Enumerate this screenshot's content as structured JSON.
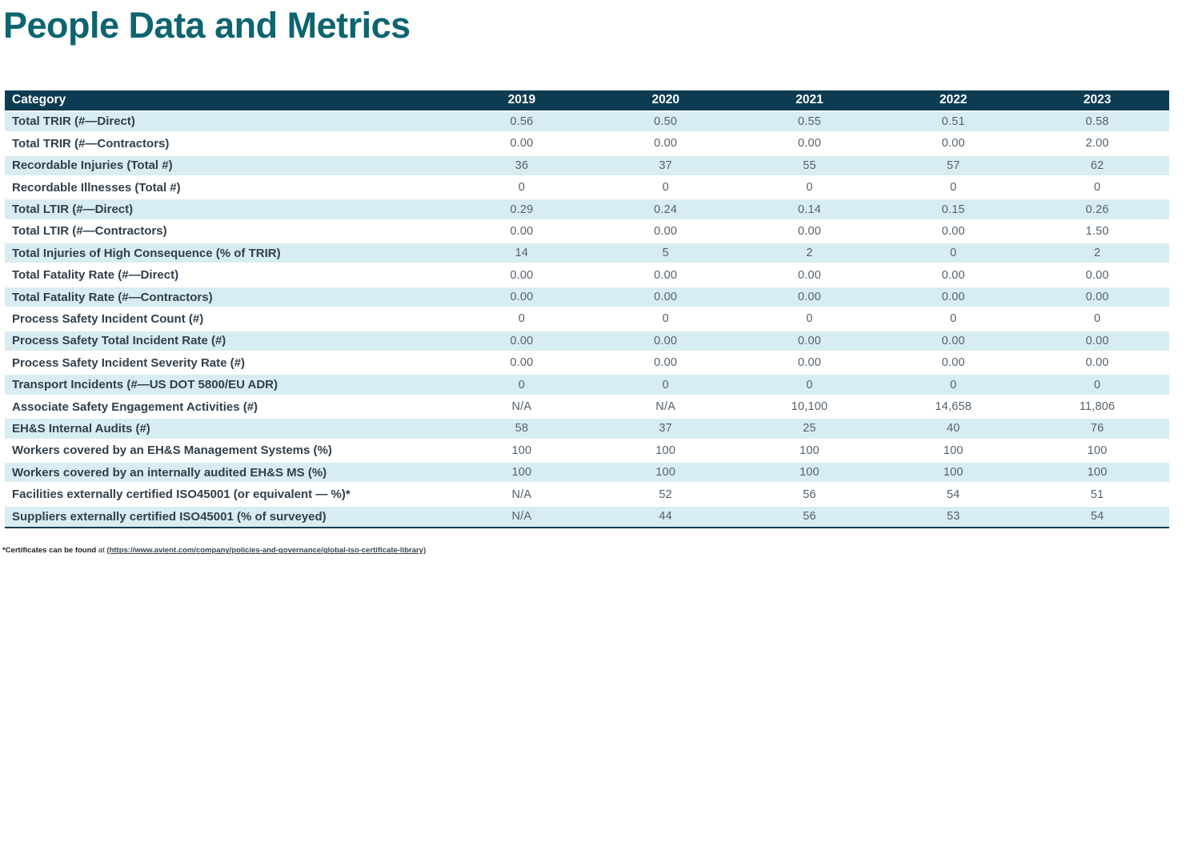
{
  "page_title": "People Data and Metrics",
  "table": {
    "header": [
      "Category",
      "2019",
      "2020",
      "2021",
      "2022",
      "2023"
    ],
    "rows": [
      {
        "category": "Total TRIR (#—Direct)",
        "values": [
          "0.56",
          "0.50",
          "0.55",
          "0.51",
          "0.58"
        ]
      },
      {
        "category": "Total TRIR (#—Contractors)",
        "values": [
          "0.00",
          "0.00",
          "0.00",
          "0.00",
          "2.00"
        ]
      },
      {
        "category": "Recordable Injuries (Total #)",
        "values": [
          "36",
          "37",
          "55",
          "57",
          "62"
        ]
      },
      {
        "category": "Recordable Illnesses (Total #)",
        "values": [
          "0",
          "0",
          "0",
          "0",
          "0"
        ]
      },
      {
        "category": "Total LTIR (#—Direct)",
        "values": [
          "0.29",
          "0.24",
          "0.14",
          "0.15",
          "0.26"
        ]
      },
      {
        "category": "Total LTIR (#—Contractors)",
        "values": [
          "0.00",
          "0.00",
          "0.00",
          "0.00",
          "1.50"
        ]
      },
      {
        "category": "Total Injuries of High Consequence (% of TRIR)",
        "values": [
          "14",
          "5",
          "2",
          "0",
          "2"
        ]
      },
      {
        "category": "Total Fatality Rate (#—Direct)",
        "values": [
          "0.00",
          "0.00",
          "0.00",
          "0.00",
          "0.00"
        ]
      },
      {
        "category": "Total Fatality Rate (#—Contractors)",
        "values": [
          "0.00",
          "0.00",
          "0.00",
          "0.00",
          "0.00"
        ]
      },
      {
        "category": "Process Safety Incident Count (#)",
        "values": [
          "0",
          "0",
          "0",
          "0",
          "0"
        ]
      },
      {
        "category": "Process Safety Total Incident Rate (#)",
        "values": [
          "0.00",
          "0.00",
          "0.00",
          "0.00",
          "0.00"
        ]
      },
      {
        "category": "Process Safety Incident Severity Rate (#)",
        "values": [
          "0.00",
          "0.00",
          "0.00",
          "0.00",
          "0.00"
        ]
      },
      {
        "category": "Transport Incidents (#—US DOT 5800/EU ADR)",
        "values": [
          "0",
          "0",
          "0",
          "0",
          "0"
        ]
      },
      {
        "category": "Associate Safety Engagement Activities (#)",
        "values": [
          "N/A",
          "N/A",
          "10,100",
          "14,658",
          "11,806"
        ]
      },
      {
        "category": "EH&S Internal Audits (#)",
        "values": [
          "58",
          "37",
          "25",
          "40",
          "76"
        ]
      },
      {
        "category": "Workers covered by an EH&S Management Systems (%)",
        "values": [
          "100",
          "100",
          "100",
          "100",
          "100"
        ]
      },
      {
        "category": "Workers covered by an internally audited EH&S MS (%)",
        "values": [
          "100",
          "100",
          "100",
          "100",
          "100"
        ]
      },
      {
        "category": "Facilities externally certified ISO45001 (or equivalent — %)*",
        "values": [
          "N/A",
          "52",
          "56",
          "54",
          "51"
        ]
      },
      {
        "category": "Suppliers externally certified ISO45001 (% of surveyed)",
        "values": [
          "N/A",
          "44",
          "56",
          "53",
          "54"
        ]
      }
    ]
  },
  "footnote": {
    "prefix": "*Certificates can be found",
    "middle": " at ",
    "link": "(https://www.avient.com/company/policies-and-governance/global-iso-certificate-library)"
  },
  "colors": {
    "title_teal": "#0e6470",
    "header_bg": "#0d3c52",
    "row_alt_bg": "#d8edf2",
    "category_text": "#31404c",
    "value_text": "#55616b",
    "bottom_border": "#0d3c52"
  }
}
